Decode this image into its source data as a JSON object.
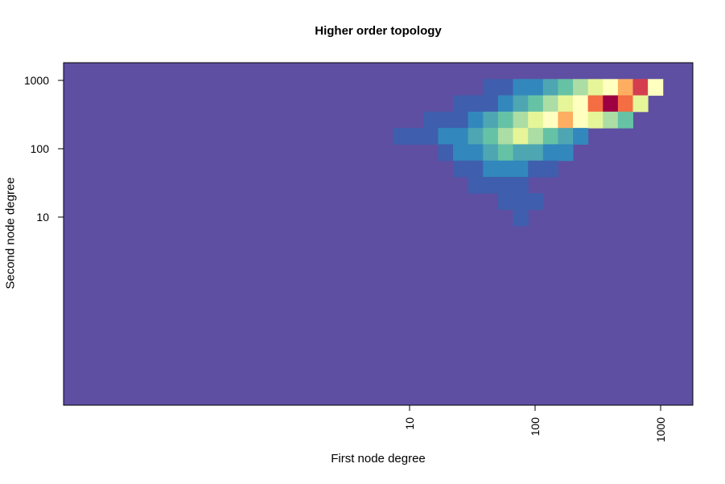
{
  "chart_data": {
    "type": "heatmap",
    "title": "Higher order topology",
    "xlabel": "First node degree",
    "ylabel": "Second node degree",
    "x_scale": "log",
    "y_scale": "log",
    "x_ticks": [
      {
        "value": 10,
        "label": "10"
      },
      {
        "value": 100,
        "label": "100"
      },
      {
        "value": 1000,
        "label": "1000"
      }
    ],
    "y_ticks": [
      {
        "value": 10,
        "label": "10"
      },
      {
        "value": 100,
        "label": "100"
      },
      {
        "value": 1000,
        "label": "1000"
      }
    ],
    "grid": false,
    "legend": "none",
    "colormap": [
      "#5E4FA2",
      "#3F5FAE",
      "#3288BD",
      "#4EA6B3",
      "#66C2A5",
      "#ABDDA4",
      "#E6F598",
      "#FFFFBF",
      "#FDAE61",
      "#F46D43",
      "#D53E4F",
      "#9E0142"
    ],
    "background_color": "#5E4FA2",
    "cells": [
      {
        "x": 0,
        "y": 0,
        "level": 0
      }
    ]
  }
}
